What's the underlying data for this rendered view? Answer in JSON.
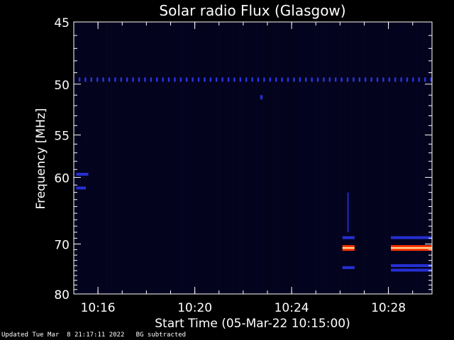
{
  "chart_data": {
    "type": "heatmap",
    "title": "Solar radio Flux (Glasgow)",
    "xlabel": "Start Time (05-Mar-22 10:15:00)",
    "ylabel_prefix": "Frequency ",
    "ylabel_unit": "[MHz]",
    "x_start_min": 0,
    "x_end_min": 14.8,
    "xticks": [
      {
        "label": "10:16",
        "min": 1
      },
      {
        "label": "10:20",
        "min": 5
      },
      {
        "label": "10:24",
        "min": 9
      },
      {
        "label": "10:28",
        "min": 13
      }
    ],
    "ylim": [
      45,
      80
    ],
    "yaxis_scale": "reciprocal (frequency decreasing downward, non-linear)",
    "yticks": [
      45,
      50,
      55,
      60,
      70,
      80
    ],
    "colors": {
      "background": "#03031a",
      "frame": "#ffffff",
      "weak": "#1818a0",
      "medium": "#2a35e8",
      "hot": "#ff3300",
      "core": "#ffe8a0"
    },
    "features": [
      {
        "kind": "dashed-band",
        "freq": 49.6,
        "x_from": 0.2,
        "x_to": 14.8,
        "intensity": "medium"
      },
      {
        "kind": "segment",
        "freq": 59.6,
        "x_from": 0.1,
        "x_to": 0.6,
        "intensity": "medium"
      },
      {
        "kind": "segment",
        "freq": 61.4,
        "x_from": 0.1,
        "x_to": 0.5,
        "intensity": "medium"
      },
      {
        "kind": "dot",
        "freq": 51.2,
        "x_from": 7.7,
        "x_to": 7.8,
        "intensity": "medium"
      },
      {
        "kind": "segment",
        "freq": 68.9,
        "x_from": 11.1,
        "x_to": 11.6,
        "intensity": "medium"
      },
      {
        "kind": "segment",
        "freq": 70.7,
        "x_from": 11.1,
        "x_to": 11.6,
        "intensity": "hot"
      },
      {
        "kind": "segment",
        "freq": 74.4,
        "x_from": 11.1,
        "x_to": 11.6,
        "intensity": "medium"
      },
      {
        "kind": "segment",
        "freq": 68.9,
        "x_from": 13.1,
        "x_to": 14.8,
        "intensity": "medium"
      },
      {
        "kind": "segment",
        "freq": 70.7,
        "x_from": 13.1,
        "x_to": 14.8,
        "intensity": "hot"
      },
      {
        "kind": "segment",
        "freq": 74.0,
        "x_from": 13.1,
        "x_to": 14.8,
        "intensity": "medium"
      },
      {
        "kind": "segment",
        "freq": 74.9,
        "x_from": 13.1,
        "x_to": 14.8,
        "intensity": "medium"
      },
      {
        "kind": "spike",
        "freq_from": 62.0,
        "freq_to": 68.0,
        "x_from": 11.3,
        "x_to": 11.35,
        "intensity": "medium"
      }
    ]
  },
  "footer": {
    "updated": "Updated Tue Mar  8 21:17:11 2022",
    "note": "BG subtracted"
  }
}
